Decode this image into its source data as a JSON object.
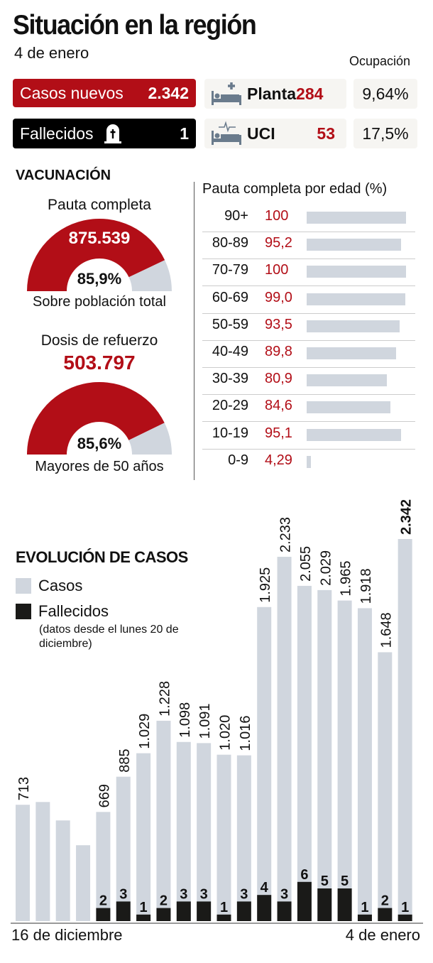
{
  "title": "Situación en la región",
  "date": "4 de enero",
  "occupancy_label": "Ocupación",
  "new_cases": {
    "label": "Casos nuevos",
    "value": "2.342"
  },
  "deaths": {
    "label": "Fallecidos",
    "value": "1",
    "icon": "tombstone-icon"
  },
  "ward": {
    "label": "Planta",
    "value": "284",
    "pct": "9,64%",
    "icon": "hospital-bed-icon"
  },
  "icu": {
    "label": "UCI",
    "value": "53",
    "pct": "17,5%",
    "icon": "icu-bed-icon"
  },
  "colors": {
    "red": "#b20e17",
    "gray": "#d0d6de",
    "black": "#1a1a18"
  },
  "vaccination": {
    "title": "VACUNACIÓN",
    "full": {
      "label": "Pauta completa",
      "value": "875.539",
      "pct": "85,9%",
      "pct_value": 85.9,
      "caption": "Sobre población total"
    },
    "booster": {
      "label": "Dosis de refuerzo",
      "value": "503.797",
      "pct": "85,6%",
      "pct_value": 85.6,
      "caption": "Mayores de 50 años"
    },
    "by_age": {
      "title": "Pauta completa por edad (%)",
      "rows": [
        {
          "age": "90+",
          "value": "100",
          "num": 100
        },
        {
          "age": "80-89",
          "value": "95,2",
          "num": 95.2
        },
        {
          "age": "70-79",
          "value": "100",
          "num": 100
        },
        {
          "age": "60-69",
          "value": "99,0",
          "num": 99.0
        },
        {
          "age": "50-59",
          "value": "93,5",
          "num": 93.5
        },
        {
          "age": "40-49",
          "value": "89,8",
          "num": 89.8
        },
        {
          "age": "30-39",
          "value": "80,9",
          "num": 80.9
        },
        {
          "age": "20-29",
          "value": "84,6",
          "num": 84.6
        },
        {
          "age": "10-19",
          "value": "95,1",
          "num": 95.1
        },
        {
          "age": "0-9",
          "value": "4,29",
          "num": 4.29
        }
      ]
    }
  },
  "evolution": {
    "title": "EVOLUCIÓN DE CASOS",
    "legend_cases": "Casos",
    "legend_deaths": "Fallecidos",
    "note": "(datos desde el lunes 20 de diciembre)"
  },
  "chart_data": {
    "type": "bar",
    "title": "EVOLUCIÓN DE CASOS",
    "x_start_label": "16 de diciembre",
    "x_end_label": "4 de enero",
    "series": [
      {
        "name": "Casos",
        "values": [
          713,
          730,
          617,
          465,
          669,
          885,
          1029,
          1228,
          1098,
          1091,
          1020,
          1016,
          1925,
          2233,
          2055,
          2029,
          1965,
          1918,
          1648,
          2342
        ],
        "labels": [
          "713",
          "",
          "",
          "",
          "669",
          "885",
          "1.029",
          "1.228",
          "1.098",
          "1.091",
          "1.020",
          "1.016",
          "1.925",
          "2.233",
          "2.055",
          "2.029",
          "1.965",
          "1.918",
          "1.648",
          "2.342"
        ]
      },
      {
        "name": "Fallecidos",
        "values": [
          null,
          null,
          null,
          null,
          2,
          3,
          1,
          2,
          3,
          3,
          1,
          3,
          4,
          3,
          6,
          5,
          5,
          1,
          2,
          1
        ]
      }
    ]
  }
}
